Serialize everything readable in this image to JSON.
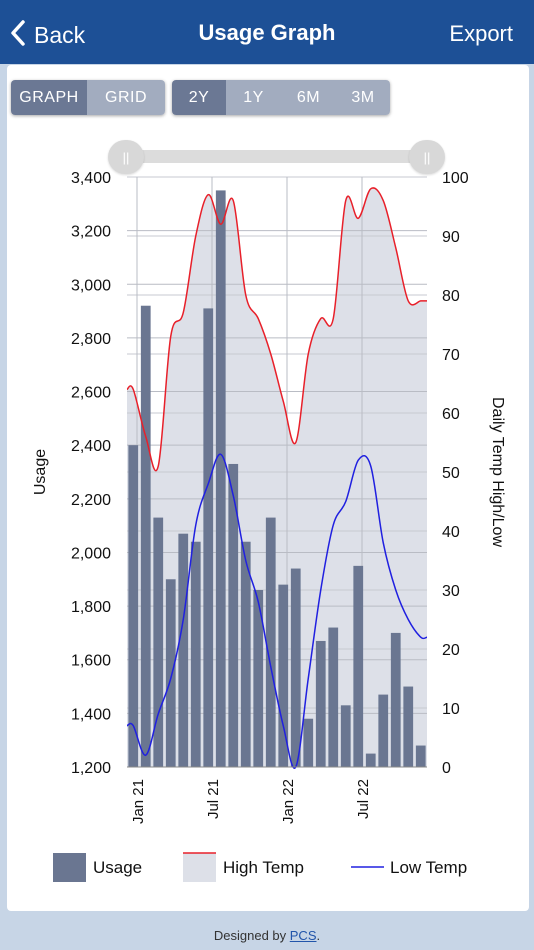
{
  "header": {
    "back_label": "Back",
    "title": "Usage Graph",
    "export_label": "Export"
  },
  "view_toggle": [
    {
      "label": "GRAPH",
      "active": true
    },
    {
      "label": "GRID",
      "active": false
    }
  ],
  "range_toggle": [
    {
      "label": "2Y",
      "active": true
    },
    {
      "label": "1Y",
      "active": false
    },
    {
      "label": "6M",
      "active": false
    },
    {
      "label": "3M",
      "active": false
    }
  ],
  "slider": {
    "handle_glyph": "||"
  },
  "chart_data": {
    "type": "bar",
    "ylabel": "Usage",
    "y2label": "Daily Temp High/Low",
    "ylim": [
      1200,
      3400
    ],
    "y2lim": [
      0,
      100
    ],
    "yticks": [
      "1,200",
      "1,400",
      "1,600",
      "1,800",
      "2,000",
      "2,200",
      "2,400",
      "2,600",
      "2,800",
      "3,000",
      "3,200",
      "3,400"
    ],
    "y2ticks": [
      "0",
      "10",
      "20",
      "30",
      "40",
      "50",
      "60",
      "70",
      "80",
      "90",
      "100"
    ],
    "xticks": [
      "Jan 21",
      "Jul 21",
      "Jan 22",
      "Jul 22"
    ],
    "usage": [
      2400,
      2920,
      2130,
      1900,
      2070,
      2040,
      2910,
      3350,
      2330,
      2040,
      1860,
      2130,
      1880,
      1940,
      1380,
      1670,
      1720,
      1430,
      1950,
      1250,
      1470,
      1700,
      1500,
      1280
    ],
    "high_temp": [
      64,
      56,
      51,
      73,
      77,
      90,
      97,
      92,
      96,
      80,
      76,
      70,
      62,
      55,
      70,
      76,
      76,
      96,
      93,
      98,
      96,
      88,
      79,
      79
    ],
    "low_temp": [
      7,
      2,
      9,
      15,
      25,
      41,
      48,
      53,
      46,
      35,
      28,
      17,
      7,
      0,
      15,
      30,
      41,
      45,
      52,
      51,
      38,
      30,
      25,
      22
    ],
    "legend": [
      {
        "label": "Usage",
        "color": "#6a7691"
      },
      {
        "label": "High Temp",
        "color": "#e8202a"
      },
      {
        "label": "Low Temp",
        "color": "#2020e0"
      }
    ],
    "bar_color": "#6a7691",
    "high_color": "#e8202a",
    "low_color": "#2020e0",
    "fill_color": "#dde0e8"
  },
  "footer": {
    "prefix": "Designed by ",
    "link": "PCS",
    "suffix": "."
  }
}
